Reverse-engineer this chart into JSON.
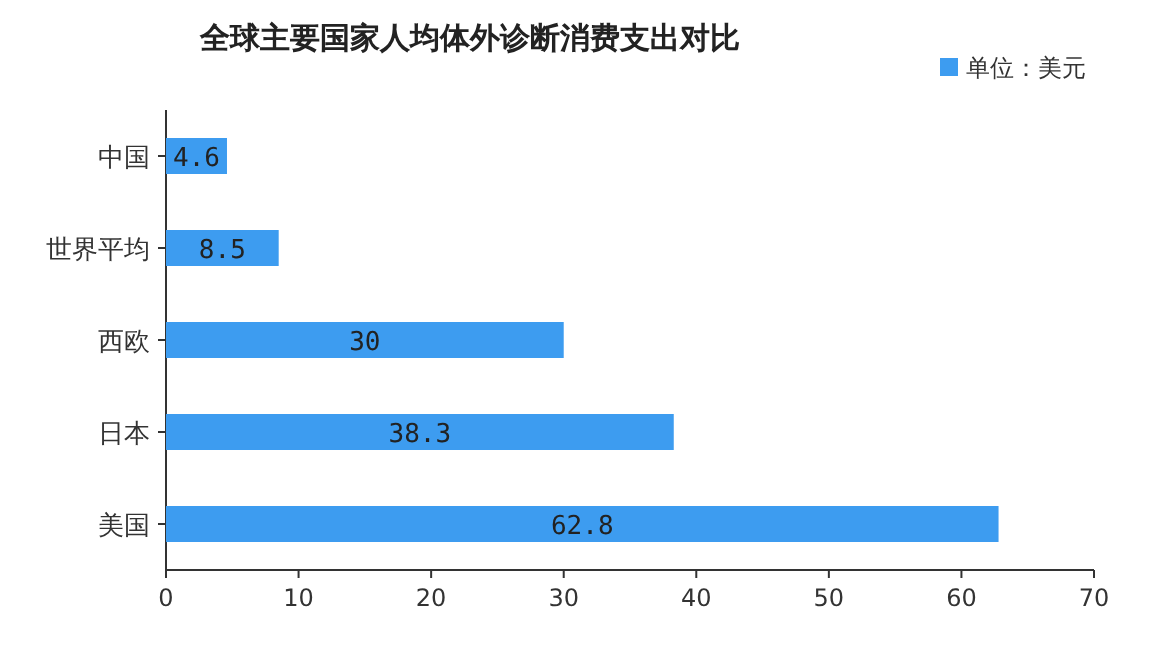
{
  "chart_data": {
    "type": "bar",
    "orientation": "horizontal",
    "title": "全球主要国家人均体外诊断消费支出对比",
    "categories": [
      "中国",
      "世界平均",
      "西欧",
      "日本",
      "美国"
    ],
    "series": [
      {
        "name": "单位：美元",
        "color": "#3d9cf0",
        "values": [
          4.6,
          8.5,
          30,
          38.3,
          62.8
        ]
      }
    ],
    "xlim": [
      0,
      70
    ],
    "xticks": [
      0,
      10,
      20,
      30,
      40,
      50,
      60,
      70
    ],
    "data_labels": true,
    "legend": "top right"
  }
}
